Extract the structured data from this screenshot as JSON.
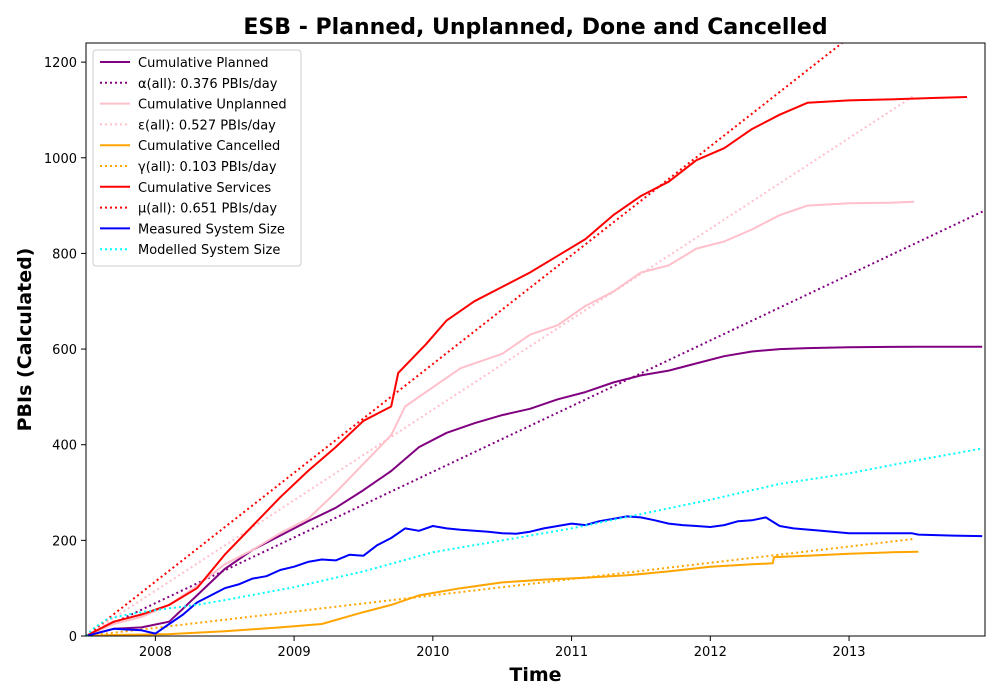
{
  "chart_data": {
    "type": "line",
    "title": "ESB - Planned, Unplanned, Done  and Cancelled",
    "xlabel": "Time",
    "ylabel": "PBIs (Calculated)",
    "xlim": [
      2007.5,
      2013.98
    ],
    "ylim": [
      0,
      1240
    ],
    "x_ticks": [
      2008,
      2009,
      2010,
      2011,
      2012,
      2013
    ],
    "y_ticks": [
      0,
      200,
      400,
      600,
      800,
      1000,
      1200
    ],
    "grid": false,
    "legend_position": "top-left",
    "series": [
      {
        "name": "Cumulative Planned",
        "color": "#800080",
        "style": "solid",
        "x": [
          2007.5,
          2007.7,
          2007.9,
          2008.1,
          2008.3,
          2008.5,
          2008.7,
          2008.9,
          2009.1,
          2009.3,
          2009.5,
          2009.7,
          2009.9,
          2010.1,
          2010.3,
          2010.5,
          2010.7,
          2010.9,
          2011.1,
          2011.3,
          2011.5,
          2011.7,
          2011.9,
          2012.1,
          2012.3,
          2012.5,
          2012.7,
          2013.0,
          2013.5,
          2013.96
        ],
        "y": [
          0,
          15,
          18,
          30,
          85,
          140,
          180,
          210,
          240,
          268,
          305,
          345,
          395,
          425,
          445,
          462,
          475,
          495,
          510,
          530,
          545,
          555,
          570,
          585,
          595,
          600,
          602,
          604,
          605,
          605
        ]
      },
      {
        "name": "α(all): 0.376 PBIs/day",
        "color": "#800080",
        "style": "dotted",
        "x": [
          2007.5,
          2013.98
        ],
        "y": [
          0,
          890
        ]
      },
      {
        "name": "Cumulative Unplanned",
        "color": "#ffc0cb",
        "style": "solid",
        "x": [
          2007.5,
          2007.7,
          2007.9,
          2008.1,
          2008.3,
          2008.5,
          2008.7,
          2008.9,
          2009.1,
          2009.3,
          2009.5,
          2009.7,
          2009.8,
          2010.0,
          2010.2,
          2010.5,
          2010.7,
          2010.9,
          2011.1,
          2011.3,
          2011.5,
          2011.7,
          2011.9,
          2012.1,
          2012.3,
          2012.5,
          2012.7,
          2013.0,
          2013.3,
          2013.47
        ],
        "y": [
          0,
          25,
          40,
          65,
          105,
          150,
          180,
          215,
          245,
          300,
          360,
          420,
          480,
          520,
          560,
          590,
          630,
          650,
          690,
          720,
          760,
          775,
          810,
          825,
          850,
          880,
          900,
          905,
          906,
          908
        ]
      },
      {
        "name": "ε(all): 0.527 PBIs/day",
        "color": "#ffc0cb",
        "style": "dotted",
        "x": [
          2007.5,
          2013.47
        ],
        "y": [
          0,
          1130
        ]
      },
      {
        "name": "Cumulative Cancelled",
        "color": "#ffa500",
        "style": "solid",
        "x": [
          2007.5,
          2007.7,
          2007.9,
          2008.1,
          2008.5,
          2008.9,
          2009.2,
          2009.5,
          2009.7,
          2009.9,
          2010.2,
          2010.5,
          2010.8,
          2011.1,
          2011.4,
          2011.7,
          2012.0,
          2012.3,
          2012.45,
          2012.46,
          2012.7,
          2013.0,
          2013.3,
          2013.5
        ],
        "y": [
          0,
          2,
          3,
          4,
          10,
          18,
          25,
          50,
          65,
          85,
          100,
          112,
          118,
          122,
          127,
          135,
          145,
          150,
          152,
          165,
          168,
          172,
          175,
          176
        ]
      },
      {
        "name": "γ(all): 0.103 PBIs/day",
        "color": "#ffa500",
        "style": "dotted",
        "x": [
          2007.5,
          2013.47
        ],
        "y": [
          0,
          203
        ]
      },
      {
        "name": "Cumulative Services",
        "color": "#ff0000",
        "style": "solid",
        "x": [
          2007.5,
          2007.7,
          2007.9,
          2008.1,
          2008.3,
          2008.5,
          2008.7,
          2008.9,
          2009.1,
          2009.3,
          2009.5,
          2009.7,
          2009.75,
          2009.95,
          2010.1,
          2010.3,
          2010.5,
          2010.7,
          2010.9,
          2011.1,
          2011.3,
          2011.5,
          2011.7,
          2011.9,
          2012.1,
          2012.3,
          2012.5,
          2012.7,
          2013.0,
          2013.3,
          2013.6,
          2013.85
        ],
        "y": [
          0,
          30,
          45,
          65,
          100,
          170,
          230,
          290,
          345,
          395,
          450,
          480,
          550,
          610,
          660,
          700,
          730,
          760,
          795,
          830,
          880,
          920,
          950,
          995,
          1020,
          1060,
          1090,
          1115,
          1120,
          1122,
          1125,
          1127
        ]
      },
      {
        "name": "μ(all): 0.651 PBIs/day",
        "color": "#ff0000",
        "style": "dotted",
        "x": [
          2007.5,
          2012.95
        ],
        "y": [
          0,
          1240
        ]
      },
      {
        "name": "Measured System Size",
        "color": "#0000ff",
        "style": "solid",
        "x": [
          2007.5,
          2007.7,
          2007.9,
          2008.0,
          2008.1,
          2008.2,
          2008.3,
          2008.4,
          2008.5,
          2008.6,
          2008.7,
          2008.8,
          2008.9,
          2009.0,
          2009.1,
          2009.2,
          2009.3,
          2009.4,
          2009.5,
          2009.6,
          2009.7,
          2009.8,
          2009.9,
          2010.0,
          2010.1,
          2010.2,
          2010.3,
          2010.4,
          2010.5,
          2010.6,
          2010.7,
          2010.8,
          2010.9,
          2011.0,
          2011.1,
          2011.2,
          2011.3,
          2011.4,
          2011.5,
          2011.6,
          2011.7,
          2011.8,
          2011.9,
          2012.0,
          2012.1,
          2012.2,
          2012.3,
          2012.4,
          2012.5,
          2012.6,
          2012.8,
          2013.0,
          2013.3,
          2013.45,
          2013.5,
          2013.75,
          2013.96
        ],
        "y": [
          0,
          15,
          12,
          5,
          25,
          45,
          70,
          85,
          100,
          108,
          120,
          125,
          138,
          145,
          155,
          160,
          158,
          170,
          168,
          190,
          205,
          225,
          220,
          230,
          225,
          222,
          220,
          218,
          215,
          214,
          218,
          225,
          230,
          235,
          232,
          240,
          245,
          250,
          248,
          242,
          235,
          232,
          230,
          228,
          232,
          240,
          242,
          248,
          230,
          225,
          220,
          215,
          215,
          215,
          212,
          210,
          209
        ]
      },
      {
        "name": "Modelled System Size",
        "color": "#00ffff",
        "style": "dotted",
        "x": [
          2007.5,
          2007.55,
          2007.65,
          2007.8,
          2007.95,
          2008.1,
          2008.3,
          2008.5,
          2009.0,
          2009.5,
          2010.0,
          2010.5,
          2011.0,
          2011.5,
          2012.0,
          2012.5,
          2013.0,
          2013.5,
          2013.96
        ],
        "y": [
          0,
          15,
          35,
          45,
          52,
          58,
          65,
          75,
          102,
          135,
          175,
          200,
          225,
          255,
          285,
          318,
          340,
          368,
          392
        ]
      }
    ]
  }
}
